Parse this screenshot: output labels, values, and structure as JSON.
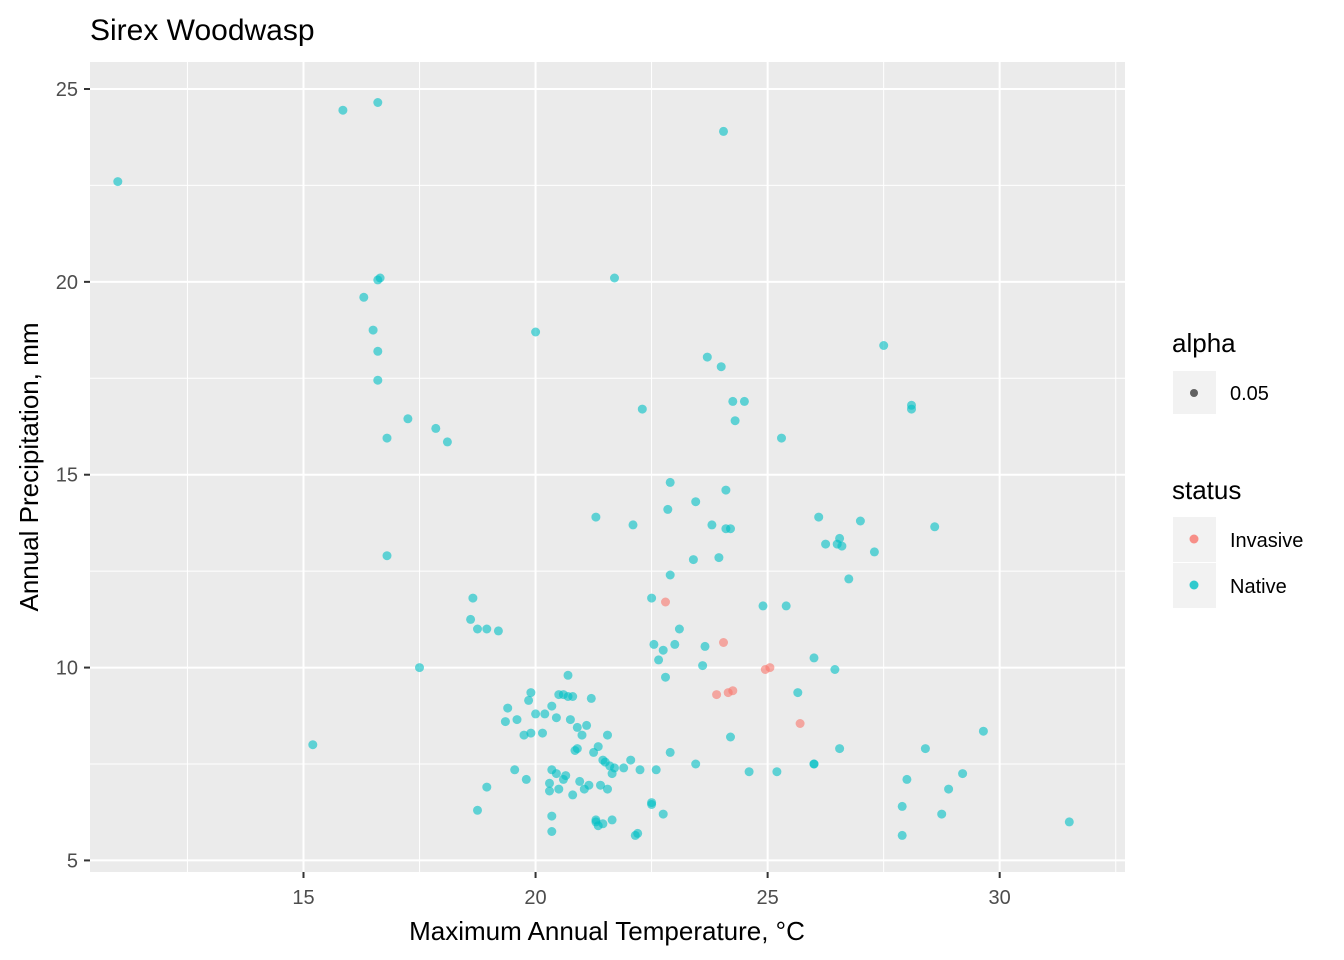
{
  "chart_data": {
    "type": "scatter",
    "title": "Sirex Woodwasp",
    "xlabel": "Maximum Annual Temperature, °C",
    "ylabel": "Annual Precipitation, mm",
    "xlim": [
      10.4,
      32.7
    ],
    "ylim": [
      4.7,
      25.7
    ],
    "x_ticks": [
      15,
      20,
      25,
      30
    ],
    "x_tick_labels": [
      "15",
      "20",
      "25",
      "30"
    ],
    "y_ticks": [
      5,
      10,
      15,
      20,
      25
    ],
    "y_tick_labels": [
      "5",
      "10",
      "15",
      "20",
      "25"
    ],
    "grid": true,
    "legend_position": "right",
    "legends": [
      {
        "title": "alpha",
        "entries": [
          {
            "label": "0.05",
            "color": "#000000"
          }
        ]
      },
      {
        "title": "status",
        "entries": [
          {
            "label": "Invasive",
            "color": "#F8766D"
          },
          {
            "label": "Native",
            "color": "#00BFC4"
          }
        ]
      }
    ],
    "colors": {
      "panel": "#EBEBEB",
      "grid": "#FFFFFF",
      "Invasive": "#F8766D",
      "Native": "#00BFC4"
    },
    "series": [
      {
        "name": "Invasive",
        "x": [
          22.8,
          23.9,
          24.05,
          24.15,
          24.25,
          24.95,
          25.05,
          25.7
        ],
        "y": [
          11.7,
          9.3,
          10.65,
          9.35,
          9.4,
          9.95,
          10.0,
          8.55
        ]
      },
      {
        "name": "Native",
        "x": [
          11.0,
          15.85,
          16.6,
          24.05,
          21.7,
          16.3,
          16.6,
          16.65,
          16.5,
          16.6,
          16.6,
          20.0,
          17.25,
          16.8,
          17.85,
          18.1,
          16.8,
          15.2,
          17.5,
          18.65,
          18.6,
          18.75,
          18.95,
          19.2,
          19.9,
          19.35,
          19.4,
          19.6,
          19.75,
          19.85,
          20.0,
          20.2,
          20.35,
          20.45,
          20.6,
          20.7,
          20.75,
          20.9,
          21.0,
          21.1,
          21.2,
          21.35,
          19.55,
          19.8,
          19.9,
          20.15,
          20.35,
          20.5,
          20.65,
          20.85,
          20.9,
          21.05,
          21.25,
          21.45,
          21.5,
          21.6,
          21.7,
          21.9,
          22.05,
          22.25,
          20.3,
          20.45,
          20.6,
          20.8,
          20.95,
          21.15,
          21.4,
          21.55,
          21.65,
          22.2,
          22.5,
          22.6,
          22.75,
          18.75,
          18.95,
          20.35,
          21.3,
          21.45,
          21.35,
          20.35,
          22.15,
          22.5,
          20.7,
          20.5,
          20.8,
          21.55,
          21.65,
          21.3,
          20.3,
          21.3,
          22.1,
          22.9,
          22.3,
          22.85,
          22.9,
          22.5,
          22.55,
          23.1,
          22.65,
          23.0,
          22.75,
          22.8,
          23.4,
          23.45,
          23.65,
          23.95,
          23.6,
          23.7,
          23.8,
          24.0,
          24.1,
          24.1,
          24.2,
          24.25,
          24.5,
          24.3,
          23.45,
          22.9,
          24.2,
          24.6,
          25.2,
          24.9,
          25.4,
          25.3,
          25.65,
          26.0,
          26.1,
          26.0,
          26.25,
          26.45,
          26.55,
          26.6,
          26.5,
          26.75,
          26.55,
          27.0,
          27.3,
          27.5,
          28.1,
          28.1,
          28.6,
          26.0,
          28.4,
          27.9,
          28.0,
          27.9,
          28.75,
          28.9,
          29.2,
          29.65,
          31.5
        ],
        "y": [
          22.6,
          24.45,
          24.65,
          23.9,
          20.1,
          19.6,
          20.05,
          20.1,
          18.75,
          18.2,
          17.45,
          18.7,
          16.45,
          15.95,
          16.2,
          15.85,
          12.9,
          8.0,
          10.0,
          11.8,
          11.25,
          11.0,
          11.0,
          10.95,
          9.35,
          8.6,
          8.95,
          8.65,
          8.25,
          9.15,
          8.8,
          8.8,
          9.0,
          8.7,
          9.3,
          9.25,
          8.65,
          8.45,
          8.25,
          8.5,
          9.2,
          7.95,
          7.35,
          7.1,
          8.3,
          8.3,
          7.35,
          6.85,
          7.2,
          7.85,
          7.9,
          6.85,
          7.8,
          7.6,
          7.55,
          7.45,
          7.4,
          7.4,
          7.6,
          7.35,
          6.8,
          7.25,
          7.1,
          6.7,
          7.05,
          6.95,
          6.95,
          6.85,
          7.25,
          5.7,
          6.5,
          7.35,
          6.2,
          6.3,
          6.9,
          6.15,
          6.05,
          5.95,
          5.9,
          5.75,
          5.65,
          6.45,
          9.8,
          9.3,
          9.25,
          8.25,
          6.05,
          6.0,
          7.0,
          13.9,
          13.7,
          14.8,
          16.7,
          14.1,
          12.4,
          11.8,
          10.6,
          11.0,
          10.2,
          10.6,
          10.45,
          9.75,
          12.8,
          14.3,
          10.55,
          12.85,
          10.05,
          18.05,
          13.7,
          17.8,
          14.6,
          13.6,
          13.6,
          16.9,
          16.9,
          16.4,
          7.5,
          7.8,
          8.2,
          7.3,
          7.3,
          11.6,
          11.6,
          15.95,
          9.35,
          10.25,
          13.9,
          7.5,
          13.2,
          9.95,
          13.35,
          13.15,
          13.2,
          12.3,
          7.9,
          13.8,
          13.0,
          18.35,
          16.8,
          16.7,
          13.65,
          7.5,
          7.9,
          6.4,
          7.1,
          5.65,
          6.2,
          6.85,
          7.25,
          8.35,
          6.0
        ]
      }
    ]
  }
}
